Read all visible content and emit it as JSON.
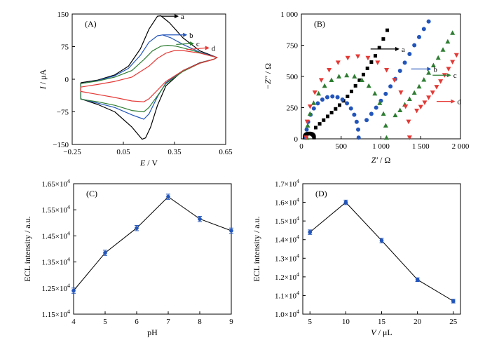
{
  "chart_data": [
    {
      "type": "line",
      "panel": "(A)",
      "xlabel_italic": "E",
      "xlabel_unit": " / V",
      "ylabel_italic": "I",
      "ylabel_unit": " / μA",
      "xlim": [
        -0.25,
        0.65
      ],
      "ylim": [
        -150,
        150
      ],
      "xticks": [
        -0.25,
        0.05,
        0.35,
        0.65
      ],
      "xtick_labels": [
        "−0.25",
        "0.05",
        "0.35",
        "0.65"
      ],
      "yticks": [
        -150,
        -75,
        0,
        75,
        150
      ],
      "ytick_labels": [
        "−150",
        "−75",
        "0",
        "75",
        "150"
      ],
      "colors": {
        "a": "#000000",
        "b": "#2255bb",
        "c": "#2e7d32",
        "d": "#e53935"
      },
      "series": [
        {
          "name": "a",
          "x": [
            -0.2,
            -0.1,
            0.0,
            0.08,
            0.15,
            0.2,
            0.25,
            0.27,
            0.32,
            0.4,
            0.5,
            0.6,
            0.58,
            0.5,
            0.4,
            0.3,
            0.25,
            0.21,
            0.18,
            0.16,
            0.1,
            0.0,
            -0.1,
            -0.2
          ],
          "y": [
            -8,
            -2,
            10,
            30,
            70,
            115,
            145,
            146,
            130,
            95,
            65,
            50,
            46,
            38,
            20,
            -15,
            -60,
            -110,
            -135,
            -138,
            -110,
            -75,
            -58,
            -45
          ]
        },
        {
          "name": "b",
          "x": [
            -0.2,
            -0.1,
            0.0,
            0.08,
            0.15,
            0.2,
            0.25,
            0.28,
            0.33,
            0.4,
            0.5,
            0.6,
            0.58,
            0.5,
            0.4,
            0.3,
            0.25,
            0.2,
            0.17,
            0.1,
            0.0,
            -0.1,
            -0.2
          ],
          "y": [
            -10,
            -3,
            8,
            25,
            55,
            85,
            100,
            102,
            95,
            80,
            62,
            50,
            46,
            37,
            20,
            -8,
            -40,
            -80,
            -92,
            -82,
            -65,
            -55,
            -45
          ]
        },
        {
          "name": "c",
          "x": [
            -0.2,
            -0.1,
            0.0,
            0.1,
            0.17,
            0.22,
            0.27,
            0.31,
            0.36,
            0.45,
            0.55,
            0.6,
            0.58,
            0.5,
            0.4,
            0.3,
            0.25,
            0.2,
            0.17,
            0.1,
            0.0,
            -0.1,
            -0.2
          ],
          "y": [
            -10,
            -4,
            5,
            20,
            45,
            65,
            76,
            78,
            76,
            67,
            55,
            50,
            46,
            37,
            18,
            -10,
            -38,
            -65,
            -75,
            -72,
            -60,
            -52,
            -46
          ]
        },
        {
          "name": "d",
          "x": [
            -0.2,
            -0.1,
            0.0,
            0.1,
            0.2,
            0.25,
            0.3,
            0.35,
            0.4,
            0.5,
            0.6,
            0.58,
            0.5,
            0.4,
            0.3,
            0.25,
            0.2,
            0.17,
            0.1,
            0.0,
            -0.1,
            -0.2
          ],
          "y": [
            -18,
            -12,
            -5,
            5,
            30,
            48,
            60,
            66,
            66,
            60,
            50,
            46,
            37,
            20,
            -5,
            -25,
            -45,
            -52,
            -50,
            -42,
            -35,
            -28
          ]
        }
      ]
    },
    {
      "type": "scatter",
      "panel": "(B)",
      "xlabel_italic": "Z′",
      "xlabel_unit": " / Ω",
      "ylabel_italic": "−Z″",
      "ylabel_unit": " / Ω",
      "xlim": [
        0,
        2000
      ],
      "ylim": [
        0,
        1000
      ],
      "xticks": [
        0,
        500,
        1000,
        1500,
        2000
      ],
      "xtick_labels": [
        "0",
        "500",
        "1 000",
        "1 500",
        "2 000"
      ],
      "yticks": [
        0,
        250,
        500,
        750,
        1000
      ],
      "ytick_labels": [
        "0",
        "250",
        "500",
        "750",
        "1 000"
      ],
      "colors": {
        "a": "#000000",
        "b": "#2255bb",
        "c": "#2e7d32",
        "d": "#e53935"
      },
      "series": [
        {
          "name": "a",
          "marker": "square",
          "center": 100,
          "radius": 60,
          "start": 40,
          "tail_x": [
            180,
            230,
            280,
            330,
            380,
            430,
            480,
            530,
            580,
            630,
            680,
            730,
            780,
            830,
            880,
            930,
            980,
            1030,
            1080
          ],
          "tail_y": [
            90,
            120,
            150,
            180,
            210,
            240,
            270,
            305,
            340,
            380,
            425,
            470,
            515,
            565,
            615,
            665,
            730,
            800,
            870
          ]
        },
        {
          "name": "b",
          "marker": "circle",
          "center": 390,
          "radius": 330,
          "start": 60,
          "tail_x": [
            820,
            880,
            940,
            1000,
            1060,
            1120,
            1180,
            1240,
            1300,
            1360,
            1420,
            1480,
            1540,
            1600
          ],
          "tail_y": [
            150,
            200,
            250,
            305,
            360,
            420,
            480,
            545,
            610,
            680,
            750,
            815,
            880,
            940
          ]
        },
        {
          "name": "c",
          "marker": "triangle-up",
          "center": 570,
          "radius": 500,
          "start": 70,
          "tail_x": [
            1180,
            1240,
            1300,
            1360,
            1420,
            1480,
            1540,
            1600,
            1660,
            1720,
            1780,
            1840,
            1900
          ],
          "tail_y": [
            190,
            230,
            275,
            320,
            370,
            420,
            475,
            530,
            590,
            650,
            715,
            780,
            850
          ]
        },
        {
          "name": "d",
          "marker": "triangle-down",
          "center": 710,
          "radius": 650,
          "start": 60,
          "tail_x": [
            1450,
            1500,
            1550,
            1600,
            1650,
            1700,
            1750,
            1800,
            1850,
            1900,
            1950
          ],
          "tail_y": [
            225,
            255,
            290,
            330,
            370,
            415,
            460,
            510,
            560,
            615,
            670
          ]
        }
      ]
    },
    {
      "type": "line",
      "panel": "(C)",
      "xlabel": "pH",
      "ylabel": "ECL intensity / a.u.",
      "xlim": [
        4,
        9
      ],
      "ylim": [
        11500,
        16500
      ],
      "xticks": [
        4,
        5,
        6,
        7,
        8,
        9
      ],
      "xtick_labels": [
        "4",
        "5",
        "6",
        "7",
        "8",
        "9"
      ],
      "yticks": [
        11500,
        12500,
        13500,
        14500,
        15500,
        16500
      ],
      "ytick_mantissas": [
        "1.15",
        "1.25",
        "1.35",
        "1.45",
        "1.55",
        "1.65"
      ],
      "ytick_exp": "4",
      "x": [
        4,
        5,
        6,
        7,
        8,
        9
      ],
      "values": [
        12400,
        13850,
        14800,
        16000,
        15150,
        14700
      ],
      "error": [
        100,
        100,
        100,
        100,
        100,
        100
      ],
      "marker_color": "#2255bb"
    },
    {
      "type": "line",
      "panel": "(D)",
      "xlabel_italic": "V",
      "xlabel_unit": " / μL",
      "ylabel": "ECL intensity / a.u.",
      "xlim": [
        4,
        26
      ],
      "ylim": [
        10000,
        17000
      ],
      "xticks": [
        5,
        10,
        15,
        20,
        25
      ],
      "xtick_labels": [
        "5",
        "10",
        "15",
        "20",
        "25"
      ],
      "yticks": [
        10000,
        11000,
        12000,
        13000,
        14000,
        15000,
        16000,
        17000
      ],
      "ytick_mantissas": [
        "1.0",
        "1.1",
        "1.2",
        "1.3",
        "1.4",
        "1.5",
        "1.6",
        "1.7"
      ],
      "ytick_exp": "4",
      "x": [
        5,
        10,
        15,
        20,
        25
      ],
      "values": [
        14400,
        16000,
        13950,
        11850,
        10700
      ],
      "error": [
        120,
        120,
        120,
        100,
        100
      ],
      "marker_color": "#2255bb"
    }
  ]
}
